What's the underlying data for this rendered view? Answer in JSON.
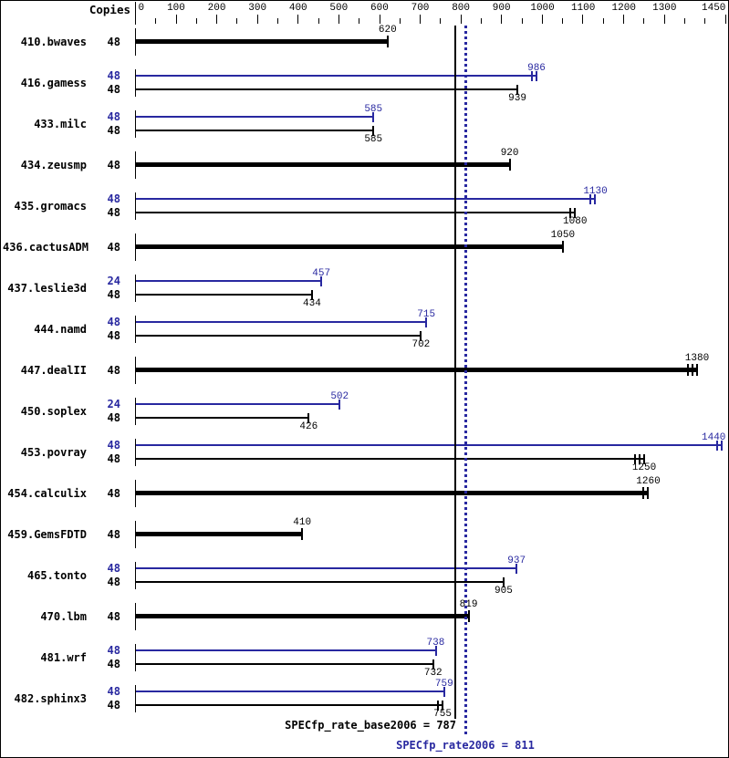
{
  "header": {
    "copies_label": "Copies"
  },
  "colors": {
    "base": "#000000",
    "peak": "#2828a0",
    "background": "#ffffff"
  },
  "footer": {
    "base_text": "SPECfp_rate_base2006 = 787",
    "peak_text": "SPECfp_rate2006 = 811",
    "base_value": 787,
    "peak_value": 811
  },
  "chart_data": {
    "type": "bar",
    "orientation": "horizontal",
    "x_axis": {
      "min": 0,
      "max": 1450,
      "labeled_ticks": [
        0,
        100,
        200,
        300,
        400,
        500,
        600,
        700,
        800,
        900,
        1000,
        1100,
        1200,
        1300,
        1450
      ],
      "minor_tick_step": 50,
      "grid": false
    },
    "reference_lines": [
      {
        "name": "SPECfp_rate_base2006",
        "value": 787,
        "style": "solid",
        "color": "#000000"
      },
      {
        "name": "SPECfp_rate2006",
        "value": 811,
        "style": "dotted",
        "color": "#2828a0"
      }
    ],
    "benchmarks": [
      {
        "name": "410.bwaves",
        "bars": [
          {
            "kind": "base",
            "copies": 48,
            "value": 620,
            "run_marks": 1
          }
        ]
      },
      {
        "name": "416.gamess",
        "bars": [
          {
            "kind": "peak",
            "copies": 48,
            "value": 986,
            "run_marks": 2
          },
          {
            "kind": "base",
            "copies": 48,
            "value": 939,
            "run_marks": 1
          }
        ]
      },
      {
        "name": "433.milc",
        "bars": [
          {
            "kind": "peak",
            "copies": 48,
            "value": 585,
            "run_marks": 1
          },
          {
            "kind": "base",
            "copies": 48,
            "value": 585,
            "run_marks": 1
          }
        ]
      },
      {
        "name": "434.zeusmp",
        "bars": [
          {
            "kind": "base",
            "copies": 48,
            "value": 920,
            "run_marks": 1
          }
        ]
      },
      {
        "name": "435.gromacs",
        "bars": [
          {
            "kind": "peak",
            "copies": 48,
            "value": 1130,
            "run_marks": 2
          },
          {
            "kind": "base",
            "copies": 48,
            "value": 1080,
            "run_marks": 2
          }
        ]
      },
      {
        "name": "436.cactusADM",
        "bars": [
          {
            "kind": "base",
            "copies": 48,
            "value": 1050,
            "run_marks": 1
          }
        ]
      },
      {
        "name": "437.leslie3d",
        "bars": [
          {
            "kind": "peak",
            "copies": 24,
            "value": 457,
            "run_marks": 1
          },
          {
            "kind": "base",
            "copies": 48,
            "value": 434,
            "run_marks": 1
          }
        ]
      },
      {
        "name": "444.namd",
        "bars": [
          {
            "kind": "peak",
            "copies": 48,
            "value": 715,
            "run_marks": 1
          },
          {
            "kind": "base",
            "copies": 48,
            "value": 702,
            "run_marks": 1
          }
        ]
      },
      {
        "name": "447.dealII",
        "bars": [
          {
            "kind": "base",
            "copies": 48,
            "value": 1380,
            "run_marks": 3
          }
        ]
      },
      {
        "name": "450.soplex",
        "bars": [
          {
            "kind": "peak",
            "copies": 24,
            "value": 502,
            "run_marks": 1
          },
          {
            "kind": "base",
            "copies": 48,
            "value": 426,
            "run_marks": 1
          }
        ]
      },
      {
        "name": "453.povray",
        "bars": [
          {
            "kind": "peak",
            "copies": 48,
            "value": 1440,
            "run_marks": 2
          },
          {
            "kind": "base",
            "copies": 48,
            "value": 1250,
            "run_marks": 3
          }
        ]
      },
      {
        "name": "454.calculix",
        "bars": [
          {
            "kind": "base",
            "copies": 48,
            "value": 1260,
            "run_marks": 2
          }
        ]
      },
      {
        "name": "459.GemsFDTD",
        "bars": [
          {
            "kind": "base",
            "copies": 48,
            "value": 410,
            "run_marks": 1
          }
        ]
      },
      {
        "name": "465.tonto",
        "bars": [
          {
            "kind": "peak",
            "copies": 48,
            "value": 937,
            "run_marks": 1
          },
          {
            "kind": "base",
            "copies": 48,
            "value": 905,
            "run_marks": 1
          }
        ]
      },
      {
        "name": "470.lbm",
        "bars": [
          {
            "kind": "base",
            "copies": 48,
            "value": 819,
            "run_marks": 1
          }
        ]
      },
      {
        "name": "481.wrf",
        "bars": [
          {
            "kind": "peak",
            "copies": 48,
            "value": 738,
            "run_marks": 1
          },
          {
            "kind": "base",
            "copies": 48,
            "value": 732,
            "run_marks": 1
          }
        ]
      },
      {
        "name": "482.sphinx3",
        "bars": [
          {
            "kind": "peak",
            "copies": 48,
            "value": 759,
            "run_marks": 1
          },
          {
            "kind": "base",
            "copies": 48,
            "value": 755,
            "run_marks": 2
          }
        ]
      }
    ]
  }
}
